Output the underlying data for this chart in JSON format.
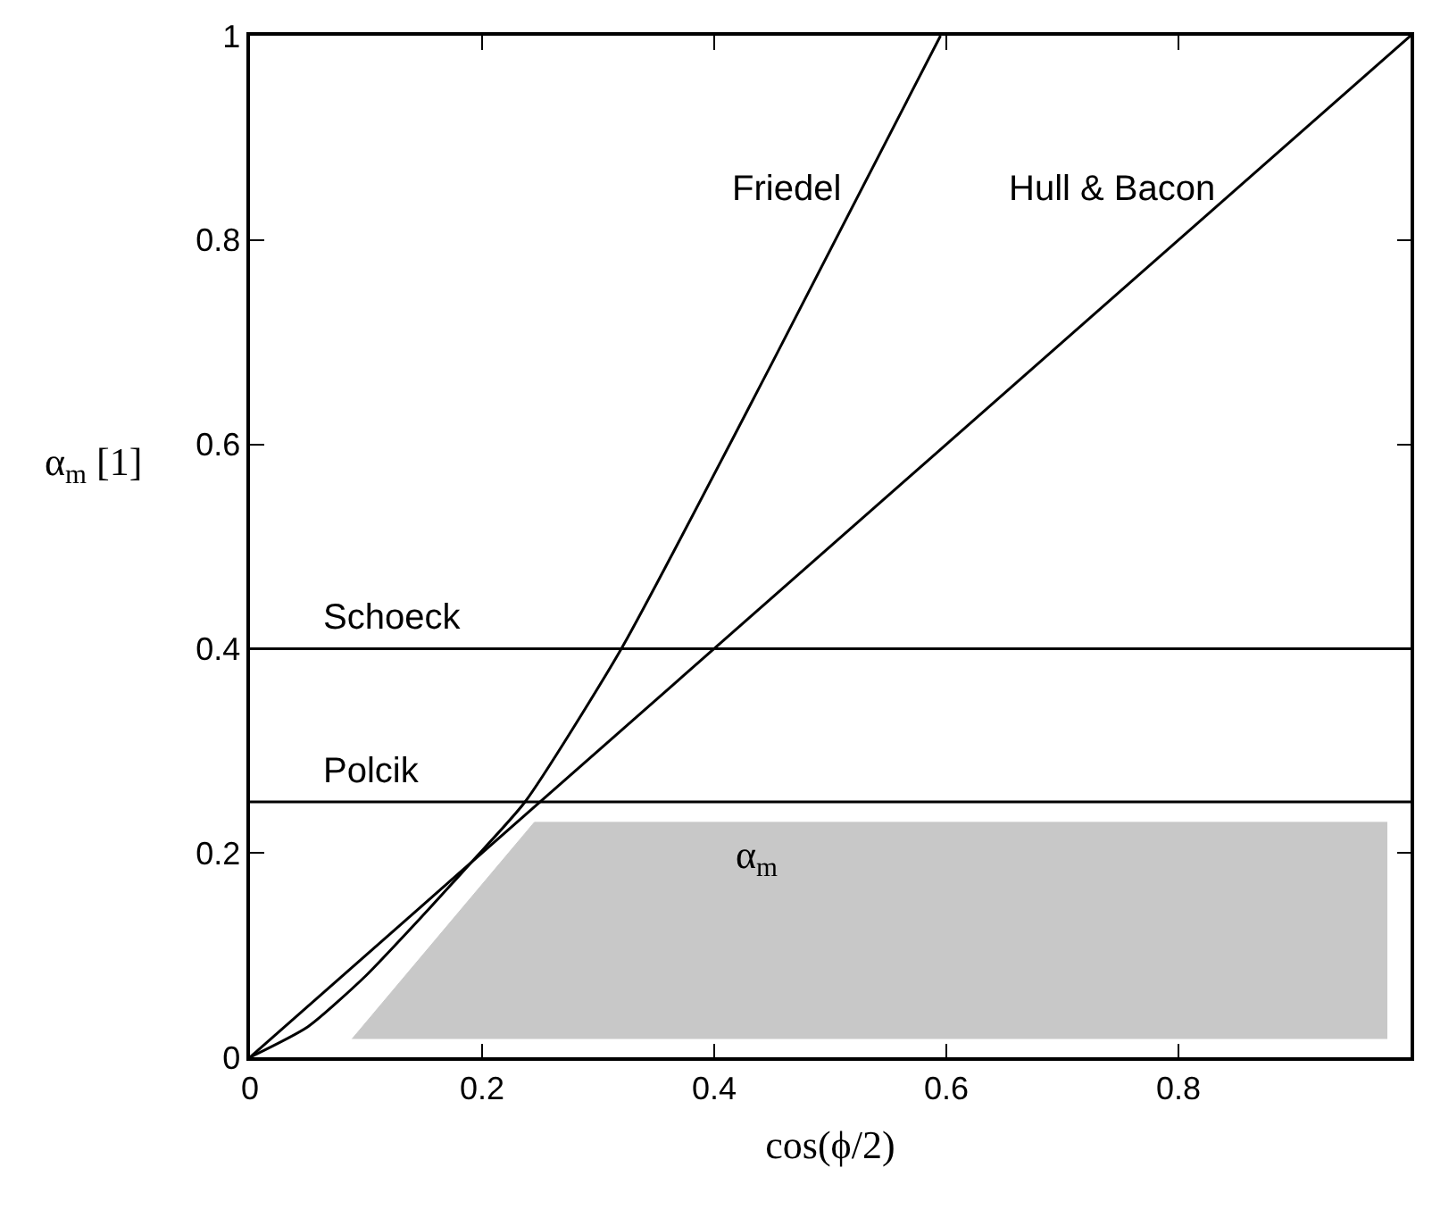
{
  "chart_data": {
    "type": "line",
    "xlabel": "cos(ϕ/2)",
    "ylabel": "α$_{m}$ [1]",
    "xlim": [
      0,
      1
    ],
    "xticks": [
      0,
      0.2,
      0.4,
      0.6,
      0.8
    ],
    "ylim": [
      0,
      1
    ],
    "yticks": [
      0,
      0.2,
      0.4,
      0.6,
      0.8,
      1
    ],
    "legend": false,
    "marker": "none",
    "line_style": "solid",
    "series": [
      {
        "name": "Friedel",
        "color": "#000000",
        "x": [
          0,
          0.05,
          0.1,
          0.15,
          0.19,
          0.237,
          0.32,
          0.45,
          0.595
        ],
        "values": [
          0,
          0.03,
          0.08,
          0.14,
          0.19,
          0.25,
          0.4,
          0.68,
          1.0
        ]
      },
      {
        "name": "Hull & Bacon",
        "color": "#000000",
        "x": [
          0,
          1
        ],
        "values": [
          0,
          1
        ]
      },
      {
        "name": "α$_{m}$",
        "type": "line",
        "color": "#c8c8c8",
        "x": [
          0.088,
          0.245,
          0.98
        ],
        "values": [
          0.018,
          0.23,
          0.23
        ],
        "lower": [
          0.018,
          0.018,
          0.018
        ],
        "upper": [
          0.018,
          0.23,
          0.23
        ]
      }
    ],
    "ref_lines": [
      {
        "axis": "y",
        "value": 0.4,
        "label": "Schoeck",
        "color": "#000000"
      },
      {
        "axis": "y",
        "value": 0.25,
        "label": "Polcik",
        "color": "#000000"
      }
    ]
  }
}
